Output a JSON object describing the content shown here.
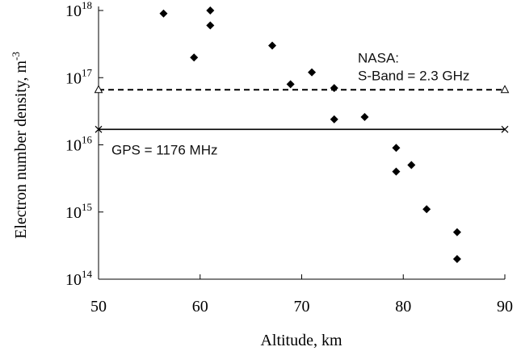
{
  "chart_data": {
    "type": "scatter",
    "xlabel": "Altitude, km",
    "ylabel": {
      "base": "Electron number density, m",
      "exponent": "-3"
    },
    "xlim": [
      50,
      90
    ],
    "ylim_log10": [
      14,
      18
    ],
    "log_y": true,
    "grid": false,
    "x_ticks": [
      "50",
      "60",
      "70",
      "80",
      "90"
    ],
    "y_ticks": [
      {
        "value": 14,
        "base": "10",
        "exponent": "14"
      },
      {
        "value": 15,
        "base": "10",
        "exponent": "15"
      },
      {
        "value": 16,
        "base": "10",
        "exponent": "16"
      },
      {
        "value": 17,
        "base": "10",
        "exponent": "17"
      },
      {
        "value": 18,
        "base": "10",
        "exponent": "18"
      }
    ],
    "points": [
      {
        "x": 56.4,
        "y": 9e+17
      },
      {
        "x": 59.4,
        "y": 2e+17
      },
      {
        "x": 61.0,
        "y": 1e+18
      },
      {
        "x": 61.0,
        "y": 6e+17
      },
      {
        "x": 67.1,
        "y": 3e+17
      },
      {
        "x": 68.9,
        "y": 8e+16
      },
      {
        "x": 71.0,
        "y": 1.2e+17
      },
      {
        "x": 73.2,
        "y": 7e+16
      },
      {
        "x": 73.2,
        "y": 2.4e+16
      },
      {
        "x": 76.2,
        "y": 2.6e+16
      },
      {
        "x": 79.3,
        "y": 9000000000000000.0
      },
      {
        "x": 79.3,
        "y": 4000000000000000.0
      },
      {
        "x": 80.8,
        "y": 5000000000000000.0
      },
      {
        "x": 82.3,
        "y": 1100000000000000.0
      },
      {
        "x": 85.3,
        "y": 500000000000000.0
      },
      {
        "x": 85.3,
        "y": 200000000000000.0
      }
    ],
    "reference_lines": [
      {
        "label_lines": [
          "NASA:",
          "S-Band = 2.3 GHz"
        ],
        "y": 6.6e+16,
        "style": "dashed",
        "end_marker": "triangle"
      },
      {
        "label_lines": [
          "GPS = 1176 MHz"
        ],
        "y": 1.7e+16,
        "style": "solid",
        "end_marker": "x"
      }
    ]
  }
}
